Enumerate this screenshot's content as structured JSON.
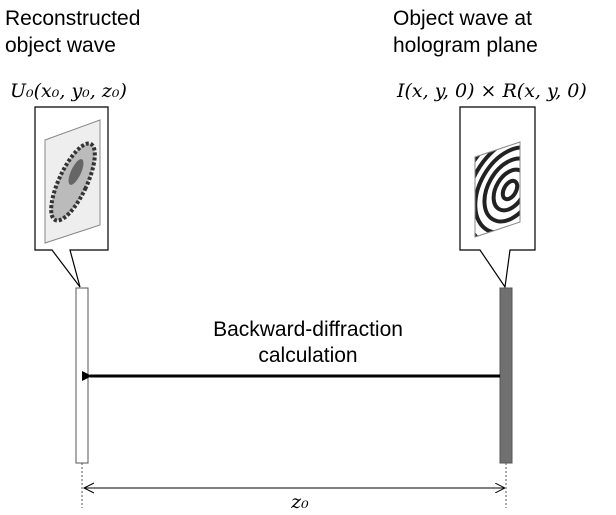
{
  "left": {
    "label": [
      "Reconstructed",
      "object wave"
    ],
    "formula": "U₀(x₀, y₀, z₀)"
  },
  "right": {
    "label": [
      "Object wave at",
      "hologram plane"
    ],
    "formula": "I(x, y, 0) × R(x, y, 0)"
  },
  "arrow": {
    "label": [
      "Backward-diffraction",
      "calculation"
    ]
  },
  "distance": {
    "label": "z₀"
  }
}
